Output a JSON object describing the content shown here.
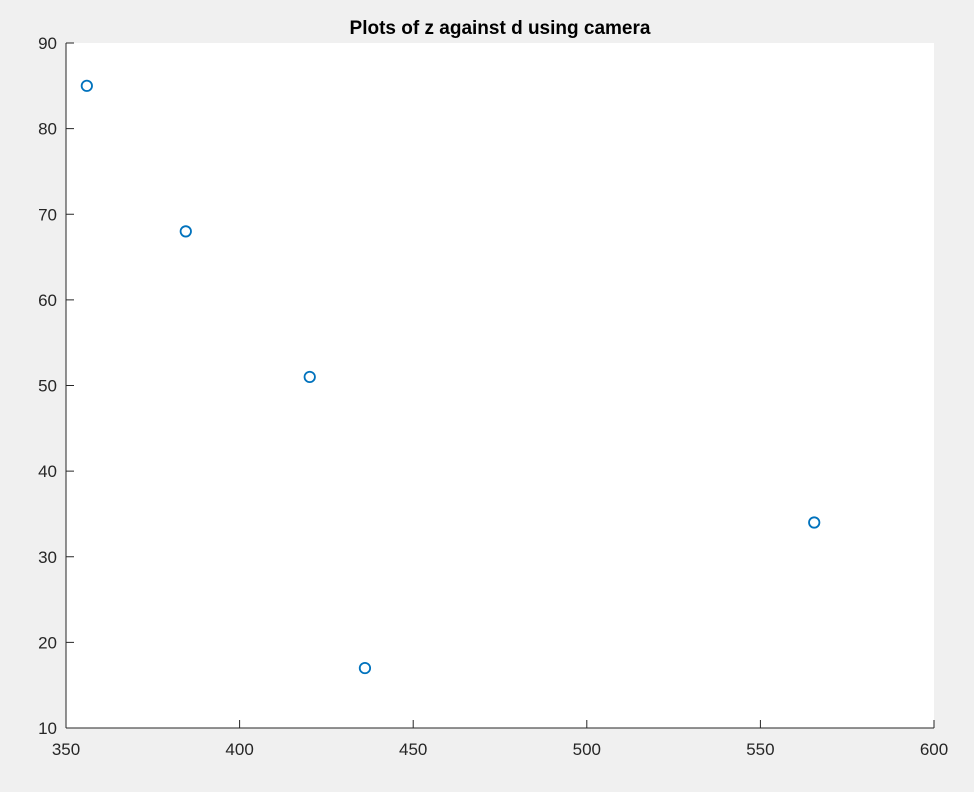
{
  "chart_data": {
    "type": "scatter",
    "title": "Plots of z against d using camera",
    "xlabel": "",
    "ylabel": "",
    "xlim": [
      350,
      600
    ],
    "ylim": [
      10,
      90
    ],
    "xticks": [
      "350",
      "400",
      "450",
      "500",
      "550",
      "600"
    ],
    "yticks": [
      "10",
      "20",
      "30",
      "40",
      "50",
      "60",
      "70",
      "80",
      "90"
    ],
    "grid": false,
    "marker": "circle-open",
    "marker_color": "#0072bd",
    "series": [
      {
        "x": [
          356,
          384.5,
          420.2,
          436.1,
          565.5
        ],
        "y": [
          85,
          68,
          51,
          17,
          34
        ]
      }
    ]
  }
}
